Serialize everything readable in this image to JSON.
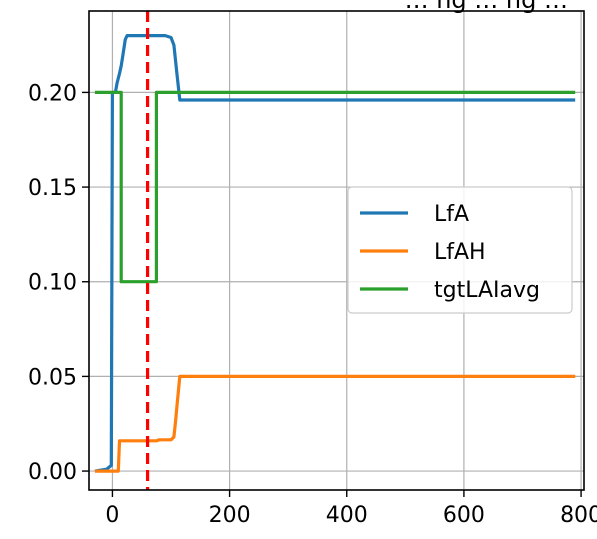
{
  "chart_data": {
    "type": "line",
    "title": "… ng … ng …",
    "xlabel": "",
    "ylabel": "",
    "xlim": [
      -40,
      805
    ],
    "ylim": [
      -0.01,
      0.243
    ],
    "xticks": [
      0,
      200,
      400,
      600,
      800
    ],
    "yticks": [
      0.0,
      0.05,
      0.1,
      0.15,
      0.2
    ],
    "xtick_labels": [
      "0",
      "200",
      "400",
      "600",
      "800"
    ],
    "ytick_labels": [
      "0.00",
      "0.05",
      "0.10",
      "0.15",
      "0.20"
    ],
    "grid": true,
    "legend_position": "center-right",
    "vline": {
      "x": 60,
      "color": "#ff0000",
      "style": "dashed"
    },
    "series": [
      {
        "name": "LfA",
        "color": "#1f77b4",
        "points": [
          [
            -30,
            0.0
          ],
          [
            -10,
            0.001
          ],
          [
            -2,
            0.003
          ],
          [
            0,
            0.2
          ],
          [
            5,
            0.2
          ],
          [
            8,
            0.205
          ],
          [
            12,
            0.21
          ],
          [
            15,
            0.214
          ],
          [
            18,
            0.22
          ],
          [
            22,
            0.228
          ],
          [
            25,
            0.23
          ],
          [
            90,
            0.23
          ],
          [
            100,
            0.229
          ],
          [
            105,
            0.225
          ],
          [
            110,
            0.21
          ],
          [
            115,
            0.196
          ],
          [
            120,
            0.196
          ],
          [
            790,
            0.196
          ]
        ]
      },
      {
        "name": "LfAH",
        "color": "#ff7f0e",
        "points": [
          [
            -30,
            0.0
          ],
          [
            10,
            0.0
          ],
          [
            12,
            0.016
          ],
          [
            75,
            0.016
          ],
          [
            80,
            0.0165
          ],
          [
            100,
            0.0165
          ],
          [
            105,
            0.018
          ],
          [
            108,
            0.027
          ],
          [
            110,
            0.034
          ],
          [
            112,
            0.04
          ],
          [
            115,
            0.05
          ],
          [
            790,
            0.05
          ]
        ]
      },
      {
        "name": "tgtLAIavg",
        "color": "#2ca02c",
        "points": [
          [
            -30,
            0.2
          ],
          [
            15,
            0.2
          ],
          [
            15,
            0.1
          ],
          [
            75,
            0.1
          ],
          [
            75,
            0.2
          ],
          [
            790,
            0.2
          ]
        ]
      }
    ]
  }
}
